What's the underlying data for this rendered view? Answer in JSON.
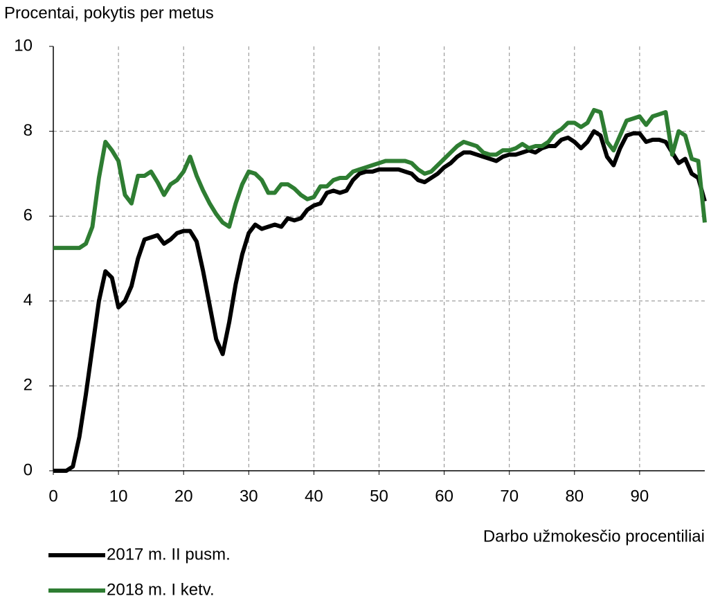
{
  "chart_data": {
    "type": "line",
    "ylabel": "Procentai, pokytis  per metus",
    "xlabel": "Darbo užmokesčio procentiliai",
    "x": [
      0,
      1,
      2,
      3,
      4,
      5,
      6,
      7,
      8,
      9,
      10,
      11,
      12,
      13,
      14,
      15,
      16,
      17,
      18,
      19,
      20,
      21,
      22,
      23,
      24,
      25,
      26,
      27,
      28,
      29,
      30,
      31,
      32,
      33,
      34,
      35,
      36,
      37,
      38,
      39,
      40,
      41,
      42,
      43,
      44,
      45,
      46,
      47,
      48,
      49,
      50,
      51,
      52,
      53,
      54,
      55,
      56,
      57,
      58,
      59,
      60,
      61,
      62,
      63,
      64,
      65,
      66,
      67,
      68,
      69,
      70,
      71,
      72,
      73,
      74,
      75,
      76,
      77,
      78,
      79,
      80,
      81,
      82,
      83,
      84,
      85,
      86,
      87,
      88,
      89,
      90,
      91,
      92,
      93,
      94,
      95,
      96,
      97,
      98,
      99,
      100
    ],
    "series": [
      {
        "name": "2017 m. II pusm.",
        "color": "#000000",
        "values": [
          0,
          0,
          0,
          0.1,
          0.8,
          1.8,
          2.9,
          4.0,
          4.7,
          4.55,
          3.85,
          4.0,
          4.35,
          5.0,
          5.45,
          5.5,
          5.55,
          5.35,
          5.45,
          5.6,
          5.65,
          5.65,
          5.4,
          4.7,
          3.9,
          3.1,
          2.75,
          3.5,
          4.4,
          5.1,
          5.6,
          5.8,
          5.7,
          5.75,
          5.8,
          5.75,
          5.95,
          5.9,
          5.95,
          6.15,
          6.25,
          6.3,
          6.55,
          6.6,
          6.55,
          6.6,
          6.85,
          7.0,
          7.05,
          7.05,
          7.1,
          7.1,
          7.1,
          7.1,
          7.05,
          7.0,
          6.85,
          6.8,
          6.9,
          7.0,
          7.15,
          7.25,
          7.4,
          7.5,
          7.5,
          7.45,
          7.4,
          7.35,
          7.3,
          7.4,
          7.45,
          7.45,
          7.5,
          7.55,
          7.5,
          7.6,
          7.65,
          7.65,
          7.8,
          7.85,
          7.75,
          7.6,
          7.75,
          8.0,
          7.9,
          7.4,
          7.2,
          7.6,
          7.9,
          7.95,
          7.95,
          7.75,
          7.8,
          7.8,
          7.75,
          7.5,
          7.25,
          7.35,
          7.0,
          6.9,
          6.35
        ]
      },
      {
        "name": "2018 m. I ketv.",
        "color": "#2e7d32",
        "values": [
          5.25,
          5.25,
          5.25,
          5.25,
          5.25,
          5.35,
          5.75,
          6.9,
          7.75,
          7.55,
          7.3,
          6.5,
          6.3,
          6.95,
          6.95,
          7.05,
          6.8,
          6.5,
          6.75,
          6.85,
          7.05,
          7.4,
          6.95,
          6.6,
          6.3,
          6.05,
          5.85,
          5.75,
          6.3,
          6.75,
          7.05,
          7.0,
          6.85,
          6.55,
          6.55,
          6.75,
          6.75,
          6.65,
          6.5,
          6.4,
          6.45,
          6.7,
          6.7,
          6.85,
          6.9,
          6.9,
          7.05,
          7.1,
          7.15,
          7.2,
          7.25,
          7.3,
          7.3,
          7.3,
          7.3,
          7.25,
          7.1,
          7.0,
          7.05,
          7.2,
          7.35,
          7.5,
          7.65,
          7.75,
          7.7,
          7.65,
          7.5,
          7.45,
          7.45,
          7.55,
          7.55,
          7.6,
          7.7,
          7.6,
          7.65,
          7.65,
          7.75,
          7.95,
          8.05,
          8.2,
          8.2,
          8.1,
          8.2,
          8.5,
          8.45,
          7.75,
          7.55,
          7.9,
          8.25,
          8.3,
          8.35,
          8.15,
          8.35,
          8.4,
          8.45,
          7.45,
          8.0,
          7.9,
          7.35,
          7.3,
          5.85
        ]
      }
    ],
    "xlim": [
      0,
      100
    ],
    "xticks": [
      0,
      10,
      20,
      30,
      40,
      50,
      60,
      70,
      80,
      90
    ],
    "ylim": [
      0,
      10
    ],
    "yticks": [
      0,
      2,
      4,
      6,
      8,
      10
    ],
    "grid": true,
    "legend": "bottom-left"
  }
}
